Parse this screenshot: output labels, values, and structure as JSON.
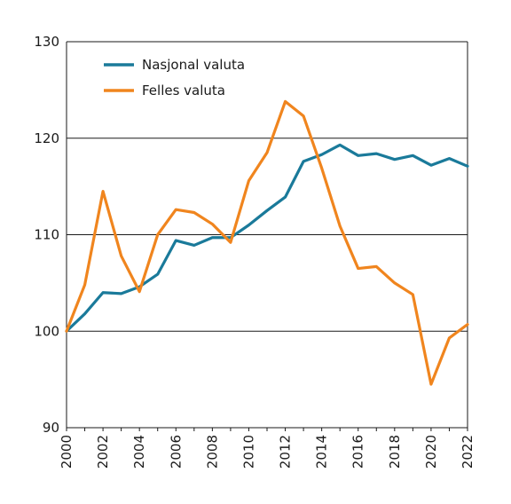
{
  "chart_data": {
    "type": "line",
    "title": "",
    "xlabel": "",
    "ylabel": "",
    "x": [
      2000,
      2001,
      2002,
      2003,
      2004,
      2005,
      2006,
      2007,
      2008,
      2009,
      2010,
      2011,
      2012,
      2013,
      2014,
      2015,
      2016,
      2017,
      2018,
      2019,
      2020,
      2021,
      2022
    ],
    "xticks": [
      "2000",
      "2002",
      "2004",
      "2006",
      "2008",
      "2010",
      "2012",
      "2014",
      "2016",
      "2018",
      "2020",
      "2022"
    ],
    "ylim": [
      90,
      130
    ],
    "yticks": [
      "90",
      "100",
      "110",
      "120",
      "130"
    ],
    "grid": "horizontal",
    "legend_position": "top-left",
    "series": [
      {
        "name": "Nasjonal valuta",
        "color": "#1a7a9a",
        "values": [
          100.0,
          101.8,
          104.0,
          103.9,
          104.6,
          105.9,
          109.4,
          108.9,
          109.7,
          109.7,
          111.0,
          112.5,
          113.9,
          117.6,
          118.3,
          119.3,
          118.2,
          118.4,
          117.8,
          118.2,
          117.2,
          117.9,
          117.1
        ]
      },
      {
        "name": "Felles valuta",
        "color": "#f0851e",
        "values": [
          100.0,
          104.8,
          114.5,
          107.8,
          104.1,
          110.0,
          112.6,
          112.3,
          111.1,
          109.2,
          115.6,
          118.5,
          123.8,
          122.3,
          116.9,
          110.9,
          106.5,
          106.7,
          105.0,
          103.8,
          94.5,
          99.3,
          100.7
        ]
      }
    ]
  }
}
